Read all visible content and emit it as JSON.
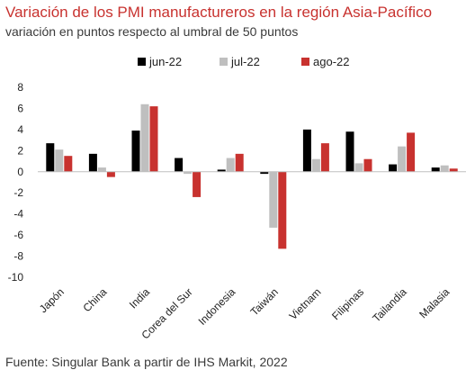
{
  "header": {
    "title": "Variación de los PMI manufactureros en la región Asia-Pacífico",
    "subtitle": "variación en puntos respecto al umbral de 50 puntos"
  },
  "footer": {
    "source": "Fuente: Singular Bank a partir de IHS Markit, 2022"
  },
  "chart_data": {
    "type": "bar",
    "title": "Variación de los PMI manufactureros en la región Asia-Pacífico",
    "subtitle": "variación en puntos respecto al umbral de 50 puntos",
    "xlabel": "",
    "ylabel": "",
    "categories": [
      "Japón",
      "China",
      "India",
      "Corea del Sur",
      "Indonesia",
      "Taiwán",
      "Vietnam",
      "Filipinas",
      "Tailandia",
      "Malasia"
    ],
    "series": [
      {
        "name": "jun-22",
        "color": "#000000",
        "values": [
          2.7,
          1.7,
          3.9,
          1.3,
          0.2,
          -0.2,
          4.0,
          3.8,
          0.7,
          0.4
        ]
      },
      {
        "name": "jul-22",
        "color": "#bfbfbf",
        "values": [
          2.1,
          0.4,
          6.4,
          -0.2,
          1.3,
          -5.3,
          1.2,
          0.8,
          2.4,
          0.6
        ]
      },
      {
        "name": "ago-22",
        "color": "#c8322f",
        "values": [
          1.5,
          -0.5,
          6.2,
          -2.4,
          1.7,
          -7.3,
          2.7,
          1.2,
          3.7,
          0.3
        ]
      }
    ],
    "ylim": [
      -10,
      8
    ],
    "yticks": [
      8,
      6,
      4,
      2,
      0,
      -2,
      -4,
      -6,
      -8,
      -10
    ],
    "legend_position": "top-center",
    "grid": false
  }
}
